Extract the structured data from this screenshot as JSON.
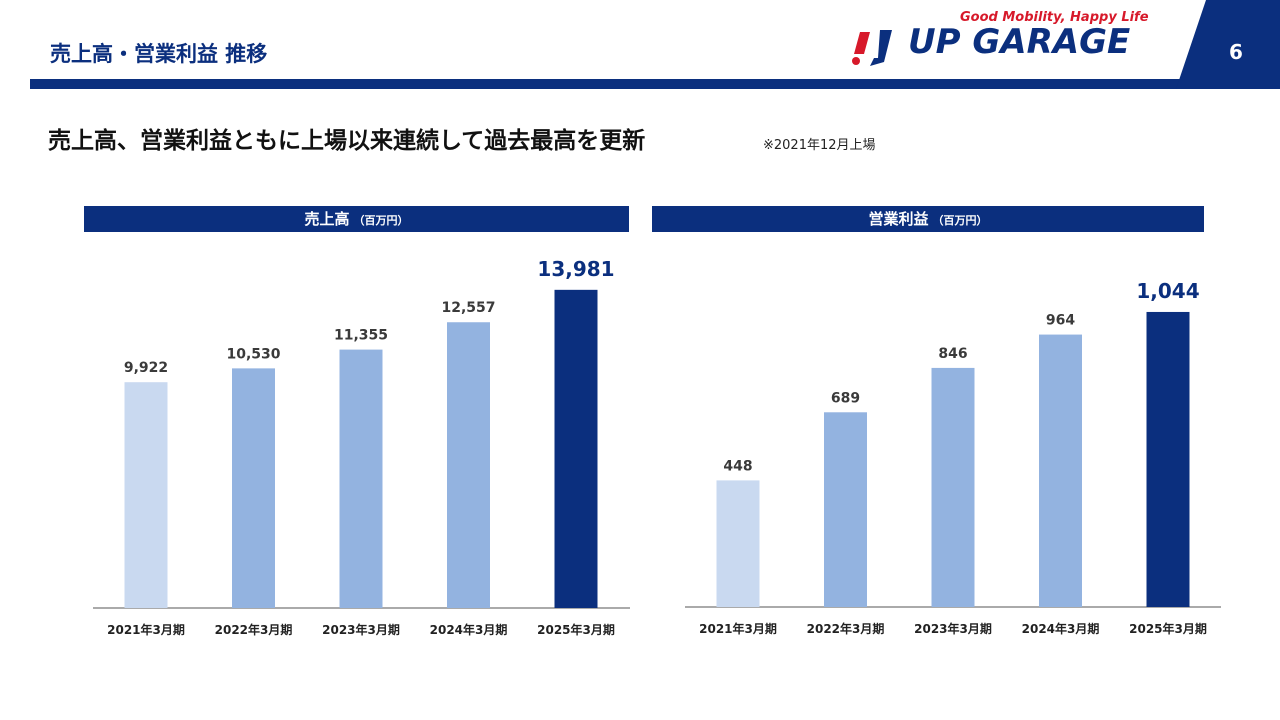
{
  "header": {
    "title": "売上高・営業利益 推移",
    "page_number": "6"
  },
  "logo": {
    "tagline": "Good Mobility, Happy Life",
    "name": "UP GARAGE"
  },
  "headline": {
    "text": "売上高、営業利益ともに上場以来連続して過去最高を更新",
    "note": "※2021年12月上場"
  },
  "colors": {
    "brand_navy": "#0b2f7e",
    "bar_light": "#c9d9f0",
    "bar_mid": "#93b3e0",
    "bar_highlight": "#0b2f7e",
    "logo_red": "#d7192a"
  },
  "chart_data": [
    {
      "type": "bar",
      "title": "売上高",
      "unit": "（百万円）",
      "categories": [
        "2021年3月期",
        "2022年3月期",
        "2023年3月期",
        "2024年3月期",
        "2025年3月期"
      ],
      "values": [
        9922,
        10530,
        11355,
        12557,
        13981
      ],
      "labels": [
        "9,922",
        "10,530",
        "11,355",
        "12,557",
        "13,981"
      ],
      "bar_colors": [
        "#c9d9f0",
        "#93b3e0",
        "#93b3e0",
        "#93b3e0",
        "#0b2f7e"
      ],
      "highlight_index": 4,
      "ylim": [
        0,
        15380
      ],
      "grid": false
    },
    {
      "type": "bar",
      "title": "営業利益",
      "unit": "（百万円）",
      "categories": [
        "2021年3月期",
        "2022年3月期",
        "2023年3月期",
        "2024年3月期",
        "2025年3月期"
      ],
      "values": [
        448,
        689,
        846,
        964,
        1044
      ],
      "labels": [
        "448",
        "689",
        "846",
        "964",
        "1,044"
      ],
      "bar_colors": [
        "#c9d9f0",
        "#93b3e0",
        "#93b3e0",
        "#93b3e0",
        "#0b2f7e"
      ],
      "highlight_index": 4,
      "ylim": [
        0,
        1150
      ],
      "grid": false
    }
  ]
}
